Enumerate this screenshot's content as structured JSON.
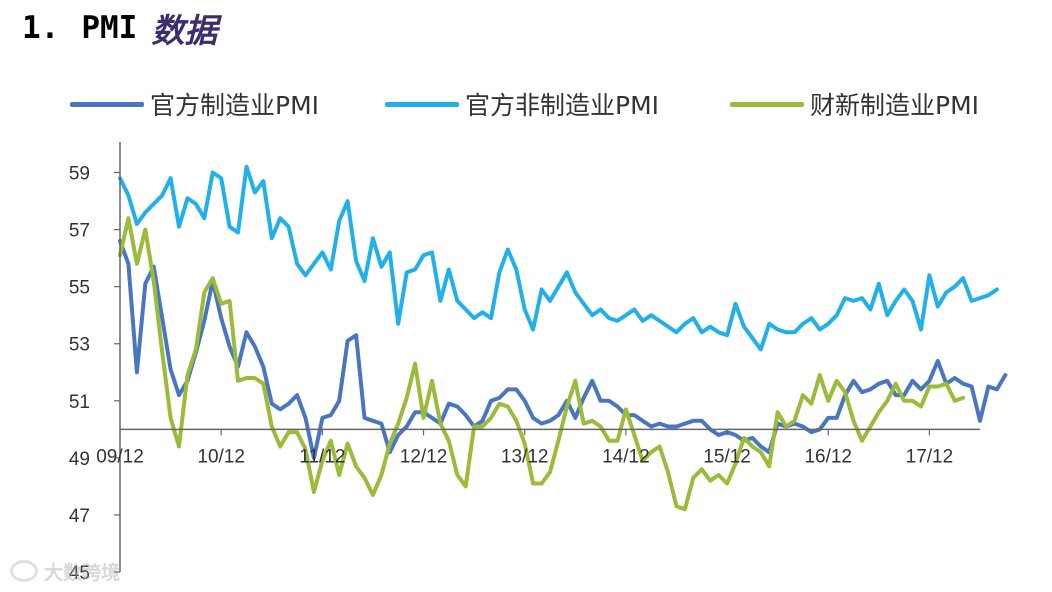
{
  "page": {
    "title_number": "1.",
    "title_text": "PMI",
    "title_cn": "数据",
    "watermark": "大数跨境"
  },
  "colors": {
    "official_manufacturing": "#4a76c0",
    "official_nonmanufacturing": "#22b0e8",
    "caixin_manufacturing": "#9bbb3b",
    "axis": "#666666"
  },
  "chart_data": {
    "type": "line",
    "title": "",
    "xlabel": "",
    "ylabel": "",
    "ylim": [
      45,
      60
    ],
    "xlim": [
      "2009-12",
      "2018-06"
    ],
    "yticks": [
      45,
      47,
      49,
      51,
      53,
      55,
      57,
      59
    ],
    "xticks": [
      "09/12",
      "10/12",
      "11/12",
      "12/12",
      "13/12",
      "14/12",
      "15/12",
      "16/12",
      "17/12"
    ],
    "x_axis_crosses_at": 50,
    "grid": false,
    "legend_position": "top",
    "series": [
      {
        "name": "官方制造业PMI",
        "color": "#4a76c0",
        "start": "2009-12",
        "values": [
          56.6,
          55.8,
          52.0,
          55.1,
          55.7,
          53.9,
          52.1,
          51.2,
          51.7,
          52.7,
          53.8,
          55.2,
          53.9,
          52.9,
          52.2,
          53.4,
          52.9,
          52.2,
          50.9,
          50.7,
          50.9,
          51.2,
          50.4,
          49.0,
          50.4,
          50.5,
          51.0,
          53.1,
          53.3,
          50.4,
          50.3,
          50.2,
          49.2,
          49.8,
          50.1,
          50.6,
          50.6,
          50.4,
          50.2,
          50.9,
          50.8,
          50.5,
          50.1,
          50.3,
          51.0,
          51.1,
          51.4,
          51.4,
          51.0,
          50.4,
          50.2,
          50.3,
          50.5,
          51.0,
          50.4,
          51.1,
          51.7,
          51.0,
          51.0,
          50.8,
          50.5,
          50.5,
          50.3,
          50.1,
          50.2,
          50.1,
          50.1,
          50.2,
          50.3,
          50.3,
          50.0,
          49.8,
          49.9,
          49.8,
          49.6,
          49.7,
          49.4,
          49.2,
          50.2,
          50.1,
          50.2,
          50.1,
          49.9,
          50.0,
          50.4,
          50.4,
          51.2,
          51.7,
          51.3,
          51.4,
          51.6,
          51.7,
          51.2,
          51.2,
          51.7,
          51.4,
          51.7,
          52.4,
          51.6,
          51.8,
          51.6,
          51.5,
          50.3,
          51.5,
          51.4,
          51.9
        ]
      },
      {
        "name": "官方非制造业PMI",
        "color": "#22b0e8",
        "start": "2009-12",
        "values": [
          58.8,
          58.2,
          57.2,
          57.6,
          57.9,
          58.2,
          58.8,
          57.1,
          58.1,
          57.9,
          57.4,
          59.0,
          58.8,
          57.1,
          56.9,
          59.2,
          58.3,
          58.7,
          56.7,
          57.4,
          57.1,
          55.8,
          55.4,
          55.8,
          56.2,
          55.6,
          57.3,
          58.0,
          55.9,
          55.2,
          56.7,
          55.7,
          56.2,
          53.7,
          55.5,
          55.6,
          56.1,
          56.2,
          54.5,
          55.6,
          54.5,
          54.2,
          53.9,
          54.1,
          53.9,
          55.5,
          56.3,
          55.6,
          54.2,
          53.5,
          54.9,
          54.5,
          55.0,
          55.5,
          54.8,
          54.4,
          54.0,
          54.2,
          53.9,
          53.8,
          54.0,
          54.2,
          53.8,
          54.0,
          53.8,
          53.6,
          53.4,
          53.7,
          53.9,
          53.4,
          53.6,
          53.4,
          53.3,
          54.4,
          53.6,
          53.2,
          52.8,
          53.7,
          53.5,
          53.4,
          53.4,
          53.7,
          53.9,
          53.5,
          53.7,
          54.0,
          54.6,
          54.5,
          54.6,
          54.2,
          55.1,
          54.0,
          54.5,
          54.9,
          54.5,
          53.5,
          55.4,
          54.3,
          54.8,
          55.0,
          55.3,
          54.5,
          54.6,
          54.7,
          54.9
        ]
      },
      {
        "name": "财新制造业PMI",
        "color": "#9bbb3b",
        "start": "2009-12",
        "values": [
          56.1,
          57.4,
          55.8,
          57.0,
          55.2,
          52.7,
          50.4,
          49.4,
          51.9,
          52.8,
          54.8,
          55.3,
          54.4,
          54.5,
          51.7,
          51.8,
          51.8,
          51.6,
          50.1,
          49.4,
          49.9,
          49.9,
          49.3,
          47.8,
          48.9,
          49.6,
          48.4,
          49.5,
          48.7,
          48.3,
          47.7,
          48.4,
          49.5,
          50.2,
          51.1,
          52.3,
          50.4,
          51.7,
          50.2,
          49.6,
          48.4,
          48.0,
          50.1,
          50.1,
          50.4,
          50.9,
          50.8,
          50.3,
          49.5,
          48.1,
          48.1,
          48.5,
          49.6,
          50.8,
          51.7,
          50.2,
          50.3,
          50.1,
          49.6,
          49.6,
          50.7,
          49.8,
          48.9,
          49.2,
          49.4,
          48.5,
          47.3,
          47.2,
          48.3,
          48.6,
          48.2,
          48.4,
          48.1,
          48.8,
          49.7,
          49.4,
          49.2,
          48.7,
          50.6,
          50.1,
          50.3,
          51.2,
          50.9,
          51.9,
          51.0,
          51.7,
          51.3,
          50.3,
          49.6,
          50.1,
          50.6,
          51.0,
          51.6,
          51.0,
          51.0,
          50.8,
          51.5,
          51.5,
          51.6,
          51.0,
          51.1
        ]
      }
    ]
  }
}
